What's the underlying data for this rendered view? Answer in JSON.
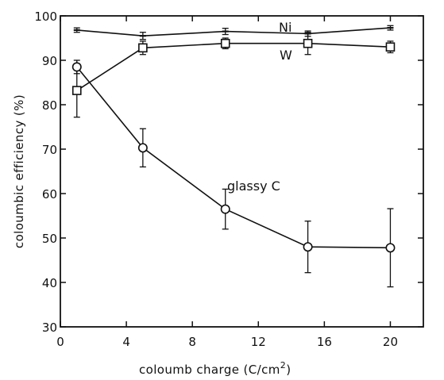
{
  "chart_data": {
    "type": "line",
    "title": "",
    "xlabel": "coloumb charge (C/cm",
    "xlabel_superscript": "2",
    "xlabel_suffix": ")",
    "ylabel": "coloumbic efficiency (%)",
    "xlim": [
      0,
      22
    ],
    "ylim": [
      30,
      100
    ],
    "xticks": [
      0,
      4,
      8,
      12,
      16,
      20
    ],
    "yticks": [
      30,
      40,
      50,
      60,
      70,
      80,
      90,
      100
    ],
    "xtick_labels": [
      "0",
      "4",
      "8",
      "12",
      "16",
      "20"
    ],
    "ytick_labels": [
      "30",
      "40",
      "50",
      "60",
      "70",
      "80",
      "90",
      "100"
    ],
    "grid": false,
    "legend": "none",
    "series": [
      {
        "name": "Ni",
        "marker": "tick",
        "x": [
          1,
          5,
          10,
          15,
          20
        ],
        "y": [
          96.8,
          95.5,
          96.5,
          96.0,
          97.3
        ],
        "err": [
          0.5,
          0.8,
          0.7,
          0.6,
          0.5
        ]
      },
      {
        "name": "W",
        "marker": "square",
        "x": [
          1,
          5,
          10,
          15,
          20
        ],
        "y": [
          83.2,
          92.8,
          93.8,
          93.8,
          93.0
        ],
        "err": [
          6.0,
          1.5,
          1.2,
          2.5,
          1.3
        ]
      },
      {
        "name": "glassy C",
        "marker": "circle",
        "x": [
          1,
          5,
          10,
          15,
          20
        ],
        "y": [
          88.5,
          70.3,
          56.5,
          48.0,
          47.8
        ],
        "err": [
          1.5,
          4.3,
          4.5,
          5.8,
          8.8
        ]
      }
    ]
  }
}
